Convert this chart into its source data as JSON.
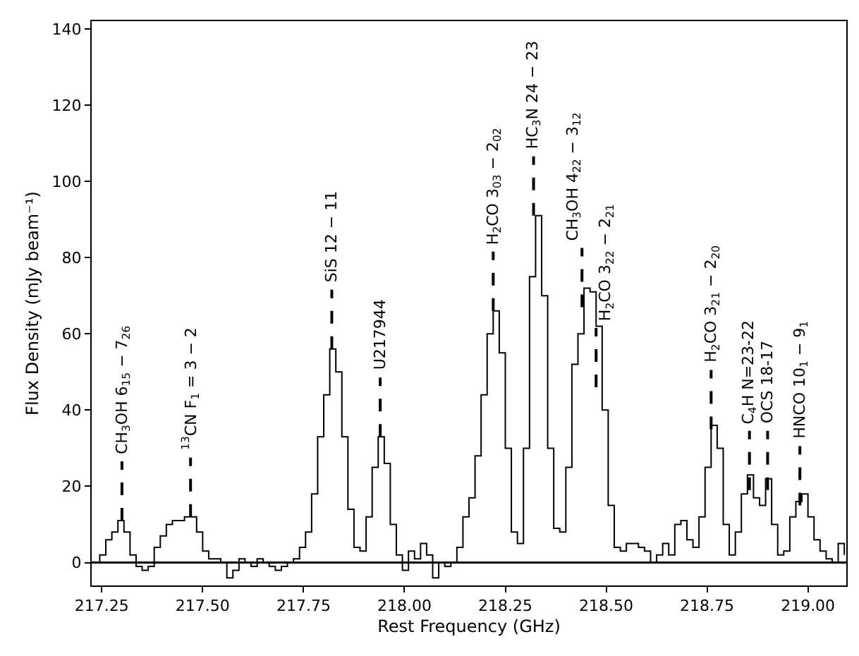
{
  "chart_data": {
    "type": "step",
    "xlabel": "Rest Frequency (GHz)",
    "ylabel": "Flux Density (mJy beam⁻¹)",
    "x": [
      217.23,
      217.245,
      217.26,
      217.275,
      217.29,
      217.305,
      217.32,
      217.335,
      217.35,
      217.365,
      217.38,
      217.395,
      217.41,
      217.425,
      217.44,
      217.455,
      217.47,
      217.485,
      217.5,
      217.515,
      217.53,
      217.545,
      217.56,
      217.575,
      217.59,
      217.605,
      217.62,
      217.635,
      217.65,
      217.665,
      217.68,
      217.695,
      217.71,
      217.725,
      217.74,
      217.755,
      217.77,
      217.785,
      217.8,
      217.815,
      217.83,
      217.845,
      217.86,
      217.875,
      217.89,
      217.905,
      217.92,
      217.935,
      217.95,
      217.965,
      217.98,
      217.995,
      218.01,
      218.025,
      218.04,
      218.055,
      218.07,
      218.085,
      218.1,
      218.115,
      218.13,
      218.145,
      218.16,
      218.175,
      218.19,
      218.205,
      218.22,
      218.235,
      218.25,
      218.265,
      218.28,
      218.295,
      218.31,
      218.325,
      218.34,
      218.355,
      218.37,
      218.385,
      218.4,
      218.415,
      218.43,
      218.445,
      218.46,
      218.475,
      218.49,
      218.505,
      218.52,
      218.535,
      218.55,
      218.565,
      218.58,
      218.595,
      218.61,
      218.625,
      218.64,
      218.655,
      218.67,
      218.685,
      218.7,
      218.715,
      218.73,
      218.745,
      218.76,
      218.775,
      218.79,
      218.805,
      218.82,
      218.835,
      218.85,
      218.865,
      218.88,
      218.895,
      218.91,
      218.925,
      218.94,
      218.955,
      218.97,
      218.985,
      219.0,
      219.015,
      219.03,
      219.045,
      219.06,
      219.075,
      219.09
    ],
    "series": [
      {
        "color": "#000000",
        "values": [
          0,
          2,
          6,
          8,
          11,
          8,
          2,
          -1,
          -2,
          -1,
          4,
          7,
          10,
          11,
          11,
          12,
          12,
          8,
          3,
          1,
          1,
          0,
          -4,
          -2,
          1,
          0,
          -1,
          1,
          0,
          -1,
          -2,
          -1,
          0,
          1,
          4,
          8,
          18,
          33,
          44,
          56,
          50,
          33,
          14,
          4,
          3,
          12,
          25,
          33,
          26,
          10,
          2,
          -2,
          3,
          1,
          5,
          2,
          -4,
          0,
          -1,
          0,
          4,
          12,
          17,
          28,
          44,
          60,
          66,
          55,
          30,
          8,
          5,
          30,
          75,
          91,
          70,
          30,
          9,
          8,
          25,
          52,
          60,
          72,
          71,
          62,
          40,
          15,
          4,
          3,
          5,
          5,
          4,
          3,
          0,
          2,
          5,
          2,
          10,
          11,
          6,
          4,
          12,
          25,
          36,
          30,
          10,
          2,
          8,
          18,
          23,
          17,
          15,
          22,
          10,
          2,
          3,
          12,
          16,
          18,
          12,
          6,
          3,
          1,
          0,
          5,
          2
        ]
      }
    ],
    "xlim": [
      217.225,
      219.095
    ],
    "xticks": [
      {
        "value": 217.25,
        "label": "217.25"
      },
      {
        "value": 217.5,
        "label": "217.50"
      },
      {
        "value": 217.75,
        "label": "217.75"
      },
      {
        "value": 218.0,
        "label": "218.00"
      },
      {
        "value": 218.25,
        "label": "218.25"
      },
      {
        "value": 218.5,
        "label": "218.50"
      },
      {
        "value": 218.75,
        "label": "218.75"
      },
      {
        "value": 219.0,
        "label": "219.00"
      }
    ],
    "ylim": [
      -6,
      142
    ],
    "yticks": [
      0,
      20,
      40,
      60,
      80,
      100,
      120,
      140
    ],
    "ref_lines": [
      {
        "axis": "y",
        "value": 0,
        "color": "#000000"
      }
    ],
    "grid": false,
    "line_style": "solid",
    "annotations": [
      {
        "text": "CH$_{3}$OH 6$_{15}$ − 7$_{26}$",
        "x": 217.3,
        "y": 11
      },
      {
        "text": "$^{13}$CN F$_{1}$ = 3 − 2",
        "x": 217.47,
        "y": 12
      },
      {
        "text": "SiS 12 − 11",
        "x": 217.82,
        "y": 56
      },
      {
        "text": "U217944",
        "x": 217.94,
        "y": 33
      },
      {
        "text": "H$_{2}$CO 3$_{03}$ − 2$_{02}$",
        "x": 218.22,
        "y": 66
      },
      {
        "text": "HC$_{3}$N 24 − 23",
        "x": 218.32,
        "y": 91
      },
      {
        "text": "CH$_{3}$OH 4$_{22}$ − 3$_{12}$",
        "x": 218.44,
        "y": 67
      },
      {
        "text": "H$_{2}$CO 3$_{22}$ − 2$_{21}$",
        "x": 218.475,
        "y": 46
      },
      {
        "text": "H$_{2}$CO 3$_{21}$ − 2$_{20}$",
        "x": 218.76,
        "y": 35
      },
      {
        "text": "C$_{4}$H N=23-22",
        "x": 218.855,
        "y": 19
      },
      {
        "text": "OCS 18-17",
        "x": 218.9,
        "y": 19
      },
      {
        "text": "HNCO 10$_{1}$ − 9$_{1}$",
        "x": 218.98,
        "y": 15
      }
    ]
  }
}
